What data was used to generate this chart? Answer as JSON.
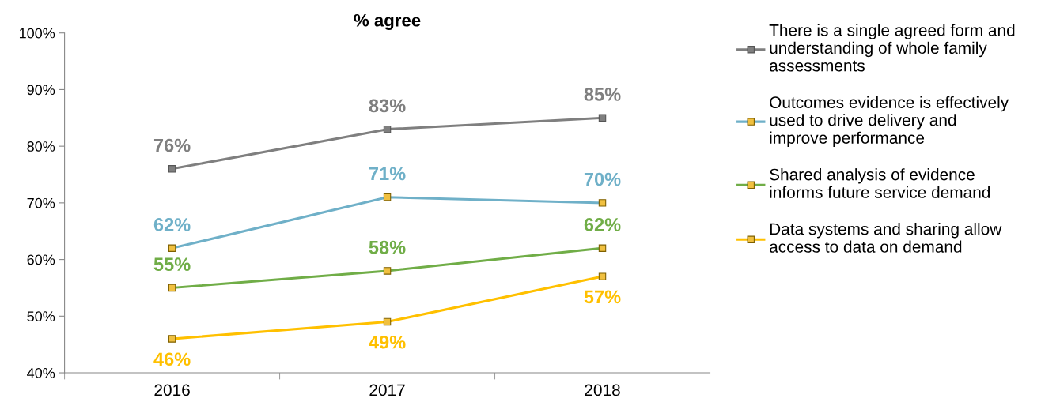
{
  "chart_data": {
    "type": "line",
    "title": "% agree",
    "categories": [
      "2016",
      "2017",
      "2018"
    ],
    "series": [
      {
        "name": "There is a single agreed form and understanding of whole family assessments",
        "color": "#7f7f7f",
        "values": [
          76,
          83,
          85
        ],
        "value_labels": [
          "76%",
          "83%",
          "85%"
        ]
      },
      {
        "name": "Outcomes evidence is effectively used to drive delivery and improve performance",
        "color": "#6fb0c8",
        "values": [
          62,
          71,
          70
        ],
        "value_labels": [
          "62%",
          "71%",
          "70%"
        ]
      },
      {
        "name": "Shared analysis of evidence informs future service demand",
        "color": "#70ad47",
        "values": [
          55,
          58,
          62
        ],
        "value_labels": [
          "55%",
          "58%",
          "62%"
        ]
      },
      {
        "name": "Data systems and sharing allow access to data on demand",
        "color": "#ffc000",
        "values": [
          46,
          49,
          57
        ],
        "value_labels": [
          "46%",
          "49%",
          "57%"
        ]
      }
    ],
    "ylim": [
      40,
      100
    ],
    "yticks": [
      {
        "value": 40,
        "label": "40%"
      },
      {
        "value": 50,
        "label": "50%"
      },
      {
        "value": 60,
        "label": "60%"
      },
      {
        "value": 70,
        "label": "70%"
      },
      {
        "value": 80,
        "label": "80%"
      },
      {
        "value": 90,
        "label": "90%"
      },
      {
        "value": 100,
        "label": "100%"
      }
    ],
    "marker": "square",
    "grid": false,
    "legend": "right"
  }
}
